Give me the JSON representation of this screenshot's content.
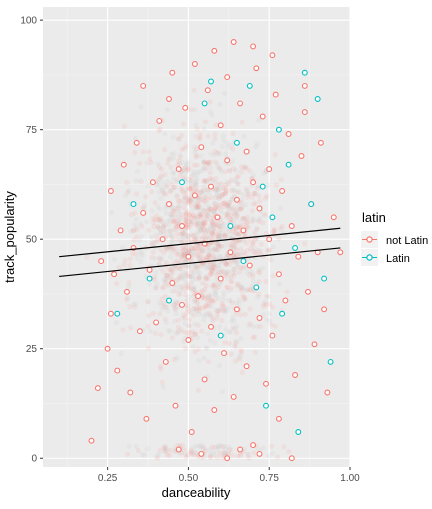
{
  "colors": {
    "panel_bg": "#ebebeb",
    "grid_major": "#ffffff",
    "grid_minor": "#f4f4f4",
    "not_latin": "#f8766d",
    "latin": "#00bfc4",
    "bg_cloud": "#c8c8c8",
    "trend": "#000000"
  },
  "chart_data": {
    "type": "scatter",
    "title": "",
    "xlabel": "danceability",
    "ylabel": "track_popularity",
    "xlim": [
      0.05,
      1.0
    ],
    "ylim": [
      -2,
      103
    ],
    "x_ticks": [
      0.25,
      0.5,
      0.75,
      1.0
    ],
    "x_tick_labels": [
      "0.25",
      "0.50",
      "0.75",
      "1.00"
    ],
    "y_ticks": [
      0,
      25,
      50,
      75,
      100
    ],
    "y_tick_labels": [
      "0",
      "25",
      "50",
      "75",
      "100"
    ],
    "grid": true,
    "legend": {
      "title": "latin",
      "position": "right",
      "entries": [
        "not Latin",
        "Latin"
      ]
    },
    "series": [
      {
        "name": "not Latin",
        "color": "#f8766d",
        "points": [
          [
            0.2,
            4
          ],
          [
            0.22,
            16
          ],
          [
            0.23,
            45
          ],
          [
            0.25,
            25
          ],
          [
            0.26,
            61
          ],
          [
            0.26,
            33
          ],
          [
            0.27,
            42
          ],
          [
            0.28,
            20
          ],
          [
            0.29,
            52
          ],
          [
            0.3,
            67
          ],
          [
            0.31,
            38
          ],
          [
            0.32,
            15
          ],
          [
            0.33,
            48
          ],
          [
            0.34,
            72
          ],
          [
            0.35,
            29
          ],
          [
            0.36,
            56
          ],
          [
            0.36,
            85
          ],
          [
            0.37,
            9
          ],
          [
            0.38,
            43
          ],
          [
            0.39,
            63
          ],
          [
            0.4,
            31
          ],
          [
            0.41,
            77
          ],
          [
            0.42,
            50
          ],
          [
            0.43,
            22
          ],
          [
            0.44,
            58
          ],
          [
            0.45,
            88
          ],
          [
            0.45,
            40
          ],
          [
            0.46,
            12
          ],
          [
            0.47,
            66
          ],
          [
            0.48,
            35
          ],
          [
            0.48,
            53
          ],
          [
            0.49,
            80
          ],
          [
            0.5,
            27
          ],
          [
            0.5,
            46
          ],
          [
            0.51,
            6
          ],
          [
            0.52,
            60
          ],
          [
            0.52,
            90
          ],
          [
            0.53,
            37
          ],
          [
            0.54,
            71
          ],
          [
            0.55,
            18
          ],
          [
            0.55,
            49
          ],
          [
            0.56,
            84
          ],
          [
            0.57,
            30
          ],
          [
            0.57,
            62
          ],
          [
            0.58,
            11
          ],
          [
            0.59,
            55
          ],
          [
            0.6,
            76
          ],
          [
            0.6,
            41
          ],
          [
            0.61,
            24
          ],
          [
            0.62,
            68
          ],
          [
            0.62,
            87
          ],
          [
            0.63,
            47
          ],
          [
            0.64,
            14
          ],
          [
            0.65,
            59
          ],
          [
            0.65,
            34
          ],
          [
            0.66,
            81
          ],
          [
            0.67,
            52
          ],
          [
            0.68,
            21
          ],
          [
            0.68,
            70
          ],
          [
            0.69,
            44
          ],
          [
            0.7,
            3
          ],
          [
            0.7,
            63
          ],
          [
            0.71,
            89
          ],
          [
            0.72,
            32
          ],
          [
            0.72,
            57
          ],
          [
            0.73,
            78
          ],
          [
            0.74,
            17
          ],
          [
            0.75,
            50
          ],
          [
            0.75,
            66
          ],
          [
            0.76,
            28
          ],
          [
            0.77,
            83
          ],
          [
            0.78,
            42
          ],
          [
            0.78,
            9
          ],
          [
            0.79,
            61
          ],
          [
            0.8,
            36
          ],
          [
            0.81,
            74
          ],
          [
            0.82,
            53
          ],
          [
            0.83,
            19
          ],
          [
            0.84,
            46
          ],
          [
            0.85,
            69
          ],
          [
            0.86,
            85
          ],
          [
            0.87,
            38
          ],
          [
            0.88,
            58
          ],
          [
            0.89,
            26
          ],
          [
            0.9,
            47
          ],
          [
            0.91,
            72
          ],
          [
            0.92,
            34
          ],
          [
            0.93,
            15
          ],
          [
            0.95,
            55
          ],
          [
            0.97,
            47
          ],
          [
            0.54,
            1
          ],
          [
            0.62,
            0
          ],
          [
            0.72,
            1
          ],
          [
            0.82,
            0
          ],
          [
            0.47,
            2
          ],
          [
            0.66,
            2
          ],
          [
            0.58,
            93
          ],
          [
            0.64,
            95
          ],
          [
            0.7,
            94
          ],
          [
            0.76,
            92
          ],
          [
            0.44,
            82
          ],
          [
            0.86,
            79
          ]
        ]
      },
      {
        "name": "Latin",
        "color": "#00bfc4",
        "points": [
          [
            0.28,
            33
          ],
          [
            0.33,
            58
          ],
          [
            0.38,
            41
          ],
          [
            0.44,
            36
          ],
          [
            0.48,
            63
          ],
          [
            0.55,
            81
          ],
          [
            0.57,
            86
          ],
          [
            0.6,
            28
          ],
          [
            0.63,
            53
          ],
          [
            0.65,
            72
          ],
          [
            0.67,
            45
          ],
          [
            0.69,
            85
          ],
          [
            0.71,
            39
          ],
          [
            0.73,
            62
          ],
          [
            0.74,
            12
          ],
          [
            0.76,
            55
          ],
          [
            0.78,
            75
          ],
          [
            0.79,
            33
          ],
          [
            0.81,
            67
          ],
          [
            0.83,
            48
          ],
          [
            0.84,
            6
          ],
          [
            0.86,
            88
          ],
          [
            0.88,
            58
          ],
          [
            0.9,
            82
          ],
          [
            0.92,
            41
          ],
          [
            0.94,
            22
          ]
        ]
      }
    ],
    "trend_lines": [
      {
        "name": "not Latin",
        "x": [
          0.1,
          0.97
        ],
        "y": [
          46,
          52.5
        ]
      },
      {
        "name": "Latin",
        "x": [
          0.1,
          0.97
        ],
        "y": [
          41.5,
          48
        ]
      }
    ]
  }
}
